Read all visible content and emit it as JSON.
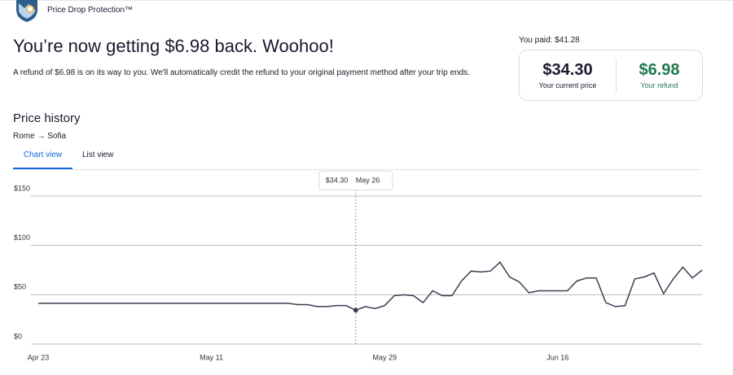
{
  "header": {
    "brand": "Price Drop Protection™"
  },
  "title": "You’re now getting $6.98 back. Woohoo!",
  "message": "A refund of $6.98 is on its way to you. We'll automatically credit the refund to your original payment method after your trip ends.",
  "summary": {
    "paid": "You paid: $41.28",
    "current_price": "$34.30",
    "current_price_label": "Your current price",
    "refund": "$6.98",
    "refund_label": "Your refund"
  },
  "price_history": {
    "heading": "Price history",
    "route": "Rome → Sofia",
    "tabs": [
      "Chart view",
      "List view"
    ]
  },
  "chart_data": {
    "type": "line",
    "categories": [
      "Apr 23",
      null,
      null,
      null,
      null,
      null,
      null,
      null,
      null,
      null,
      null,
      null,
      null,
      null,
      null,
      null,
      null,
      null,
      "May 11",
      null,
      null,
      null,
      null,
      null,
      null,
      null,
      null,
      null,
      null,
      null,
      null,
      null,
      null,
      null,
      null,
      null,
      "May 29",
      null,
      null,
      null,
      null,
      null,
      null,
      null,
      null,
      null,
      null,
      null,
      null,
      null,
      null,
      null,
      null,
      null,
      "Jun 16",
      null,
      null,
      null,
      null,
      null,
      null,
      null,
      null,
      null,
      null,
      null,
      null,
      null,
      null,
      null
    ],
    "values": [
      41.28,
      41.28,
      41.28,
      41.28,
      41.28,
      41.28,
      41.28,
      41.28,
      41.28,
      41.28,
      41.28,
      41.28,
      41.28,
      41.28,
      41.28,
      41.28,
      41.28,
      41.28,
      41.28,
      41.28,
      41.28,
      41.28,
      41.28,
      41.28,
      41.28,
      41.28,
      41.28,
      40,
      40,
      38,
      38,
      39,
      39,
      34.3,
      38,
      36,
      39,
      49,
      50,
      49,
      42,
      54,
      49,
      49,
      64,
      74,
      73,
      74,
      83,
      68,
      63,
      52,
      54,
      54,
      54,
      54,
      64,
      67,
      67,
      42,
      38,
      39,
      66,
      68,
      72,
      51,
      66,
      78,
      67,
      75
    ],
    "color": "#3b3e52",
    "ylim": [
      0,
      150
    ],
    "yticks": [
      {
        "value": 0,
        "label": "$0"
      },
      {
        "value": 50,
        "label": "$50"
      },
      {
        "value": 100,
        "label": "$100"
      },
      {
        "value": 150,
        "label": "$150"
      }
    ],
    "grid": true,
    "tooltip": {
      "price": "$34.30",
      "date": "May 26"
    }
  }
}
